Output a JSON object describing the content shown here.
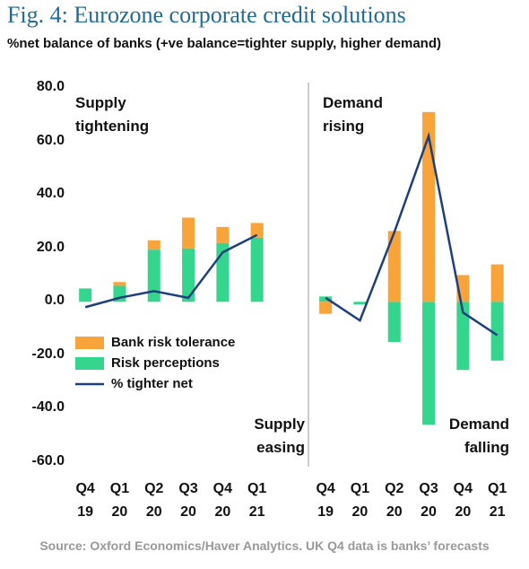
{
  "chart_data": [
    {
      "type": "bar",
      "title": "Fig. 4: Eurozone corporate credit solutions",
      "subtitle": "%net balance of banks (+ve balance=tighter supply, higher demand)",
      "source": "Source: Oxford Economics/Haver Analytics. UK Q4 data is banks’ forecasts",
      "annotations": [
        "Supply tightening",
        "Supply easing"
      ],
      "categories": [
        "Q4 19",
        "Q1 20",
        "Q2 20",
        "Q3 20",
        "Q4 20",
        "Q1 21"
      ],
      "ylim": [
        -60,
        80
      ],
      "yticks": [
        {
          "value": 80,
          "label": "80.0"
        },
        {
          "value": 60,
          "label": "60.0"
        },
        {
          "value": 40,
          "label": "40.0"
        },
        {
          "value": 20,
          "label": "20.0"
        },
        {
          "value": 0,
          "label": "0.0"
        },
        {
          "value": -20,
          "label": "-20.0"
        },
        {
          "value": -40,
          "label": "-40.0"
        },
        {
          "value": -60,
          "label": "-60.0"
        }
      ],
      "legend": "lower left",
      "series": [
        {
          "name": "Bank risk tolerance",
          "color": "#f9a33b",
          "values": [
            0,
            1.4,
            3.5,
            11.5,
            6,
            5.5
          ]
        },
        {
          "name": "Risk perceptions",
          "color": "#33d68c",
          "values": [
            5,
            6,
            19.5,
            20,
            22,
            24
          ]
        },
        {
          "name": "% tighter net",
          "color": "#1d3f7d",
          "type": "line",
          "values": [
            -2,
            1.5,
            4,
            1.5,
            18.5,
            25
          ]
        }
      ]
    },
    {
      "type": "bar",
      "annotations": [
        "Demand rising",
        "Demand falling"
      ],
      "categories": [
        "Q4 19",
        "Q1 20",
        "Q2 20",
        "Q3 20",
        "Q4 20",
        "Q1 21"
      ],
      "ylim": [
        -60,
        80
      ],
      "series": [
        {
          "name": "Bank risk tolerance",
          "color": "#f9a33b",
          "values": [
            -4.5,
            0,
            26.5,
            71,
            10,
            14
          ]
        },
        {
          "name": "Risk perceptions",
          "color": "#33d68c",
          "values": [
            2,
            -1,
            -15,
            -46,
            -25.5,
            -22
          ]
        },
        {
          "name": "% tighter net",
          "color": "#1d3f7d",
          "type": "line",
          "values": [
            1.5,
            -7,
            26,
            62,
            -4,
            -12.5
          ]
        }
      ]
    }
  ]
}
